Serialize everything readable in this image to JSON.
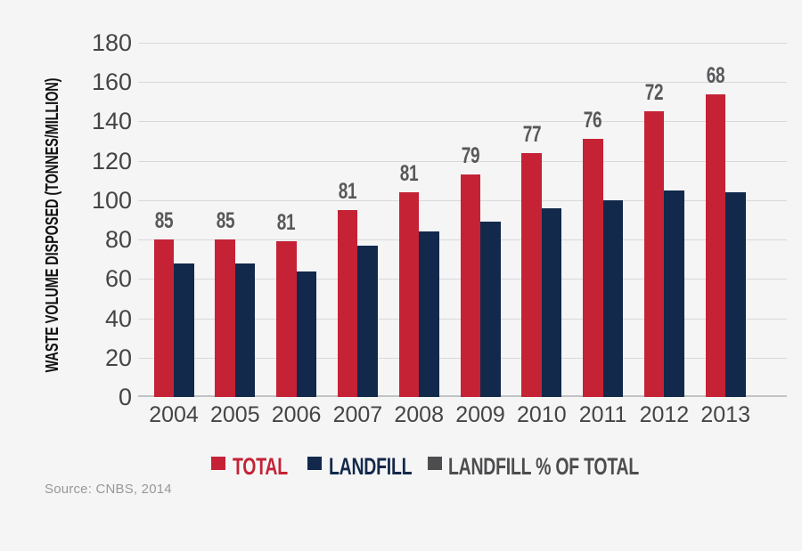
{
  "colors": {
    "background": "#f5f5f6",
    "total_bar": "#c52236",
    "landfill_bar": "#13294b",
    "pct_label": "#58585a",
    "gridline": "#d9d9db",
    "baseline": "#c2c3c5",
    "tick_text": "#454547",
    "legend_pct_text": "#4d4d4f",
    "source_text": "#97989a"
  },
  "chart_data": {
    "type": "bar",
    "title": "",
    "xlabel": "",
    "ylabel": "WASTE VOLUME DISPOSED (TONNES/MILLION)",
    "ylim": [
      0,
      180
    ],
    "ytick_step": 20,
    "grid": true,
    "legend_position": "bottom",
    "categories": [
      "2004",
      "2005",
      "2006",
      "2007",
      "2008",
      "2009",
      "2010",
      "2011",
      "2012",
      "2013"
    ],
    "series": [
      {
        "name": "TOTAL",
        "color": "#c52236",
        "render": "bar",
        "values": [
          80,
          80,
          79,
          95,
          104,
          113,
          124,
          131,
          145,
          154
        ]
      },
      {
        "name": "LANDFILL",
        "color": "#13294b",
        "render": "bar",
        "values": [
          68,
          68,
          64,
          77,
          84,
          89,
          96,
          100,
          105,
          104
        ]
      },
      {
        "name": "LANDFILL % OF TOTAL",
        "color": "#4d4d4f",
        "render": "labels_above_bars",
        "values": [
          85,
          85,
          81,
          81,
          81,
          79,
          77,
          76,
          72,
          68
        ]
      }
    ]
  },
  "source": "Source: CNBS, 2014"
}
